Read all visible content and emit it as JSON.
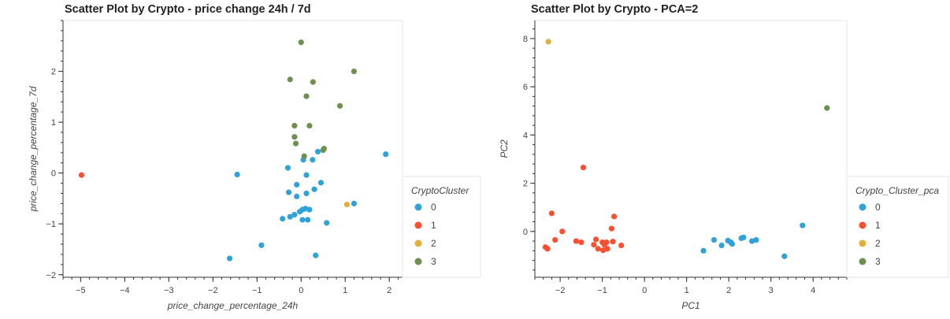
{
  "chart_data": [
    {
      "type": "scatter",
      "title": "Scatter Plot by Crypto - price change 24h / 7d",
      "xlabel": "price_change_percentage_24h",
      "ylabel": "price_change_percentage_7d",
      "xlim": [
        -5.4,
        2.3
      ],
      "ylim": [
        -2.05,
        3.0
      ],
      "xticks": [
        -5,
        -4,
        -3,
        -2,
        -1,
        0,
        1,
        2
      ],
      "yticks": [
        -2,
        -1,
        0,
        1,
        2
      ],
      "grid": false,
      "legend": {
        "title": "CryptoCluster",
        "placement": "right"
      },
      "series": [
        {
          "name": "0",
          "color": "#30a2da",
          "points": [
            [
              1.92,
              0.37
            ],
            [
              0.38,
              0.42
            ],
            [
              0.26,
              0.26
            ],
            [
              0.05,
              0.26
            ],
            [
              -0.3,
              0.1
            ],
            [
              -1.45,
              -0.03
            ],
            [
              0.12,
              -0.04
            ],
            [
              -0.1,
              -0.23
            ],
            [
              0.45,
              -0.19
            ],
            [
              0.3,
              -0.32
            ],
            [
              -0.28,
              -0.38
            ],
            [
              0.12,
              -0.4
            ],
            [
              -0.1,
              -0.46
            ],
            [
              1.2,
              -0.6
            ],
            [
              0.1,
              -0.7
            ],
            [
              0.03,
              -0.72
            ],
            [
              0.19,
              -0.72
            ],
            [
              -0.03,
              -0.76
            ],
            [
              -0.15,
              -0.82
            ],
            [
              -0.25,
              -0.86
            ],
            [
              -0.42,
              -0.9
            ],
            [
              0.03,
              -0.92
            ],
            [
              0.15,
              -0.92
            ],
            [
              0.58,
              -0.98
            ],
            [
              -0.9,
              -1.42
            ],
            [
              0.33,
              -1.62
            ],
            [
              -1.62,
              -1.68
            ]
          ]
        },
        {
          "name": "1",
          "color": "#fc4f30",
          "points": [
            [
              -4.98,
              -0.04
            ]
          ]
        },
        {
          "name": "2",
          "color": "#e5ae38",
          "points": [
            [
              1.04,
              -0.62
            ]
          ]
        },
        {
          "name": "3",
          "color": "#6d904f",
          "points": [
            [
              0.0,
              2.57
            ],
            [
              1.2,
              2.0
            ],
            [
              -0.25,
              1.84
            ],
            [
              0.27,
              1.79
            ],
            [
              0.12,
              1.51
            ],
            [
              0.88,
              1.32
            ],
            [
              -0.15,
              0.93
            ],
            [
              0.19,
              0.93
            ],
            [
              -0.15,
              0.71
            ],
            [
              -0.12,
              0.58
            ],
            [
              0.52,
              0.48
            ],
            [
              0.5,
              0.45
            ],
            [
              0.07,
              0.33
            ]
          ]
        }
      ]
    },
    {
      "type": "scatter",
      "title": "Scatter Plot by Crypto - PCA=2",
      "xlabel": "PC1",
      "ylabel": "PC2",
      "xlim": [
        -2.6,
        4.8
      ],
      "ylim": [
        -1.9,
        8.75
      ],
      "xticks": [
        -2,
        -1,
        0,
        1,
        2,
        3,
        4
      ],
      "yticks": [
        0,
        2,
        4,
        6,
        8
      ],
      "grid": false,
      "legend": {
        "title": "Crypto_Cluster_pca",
        "placement": "right"
      },
      "series": [
        {
          "name": "0",
          "color": "#30a2da",
          "points": [
            [
              3.75,
              0.25
            ],
            [
              2.35,
              -0.25
            ],
            [
              2.3,
              -0.28
            ],
            [
              1.65,
              -0.35
            ],
            [
              2.65,
              -0.35
            ],
            [
              1.98,
              -0.38
            ],
            [
              2.55,
              -0.4
            ],
            [
              2.05,
              -0.45
            ],
            [
              2.08,
              -0.52
            ],
            [
              1.83,
              -0.58
            ],
            [
              1.4,
              -0.8
            ],
            [
              3.32,
              -1.03
            ]
          ]
        },
        {
          "name": "1",
          "color": "#fc4f30",
          "points": [
            [
              -1.45,
              2.65
            ],
            [
              -2.2,
              0.75
            ],
            [
              -0.72,
              0.62
            ],
            [
              -1.95,
              0.0
            ],
            [
              -0.78,
              0.12
            ],
            [
              -2.12,
              -0.35
            ],
            [
              -1.62,
              -0.4
            ],
            [
              -1.5,
              -0.45
            ],
            [
              -1.15,
              -0.33
            ],
            [
              -1.0,
              -0.45
            ],
            [
              -0.9,
              -0.45
            ],
            [
              -0.75,
              -0.42
            ],
            [
              -1.2,
              -0.55
            ],
            [
              -0.95,
              -0.55
            ],
            [
              -0.55,
              -0.58
            ],
            [
              -2.35,
              -0.65
            ],
            [
              -2.3,
              -0.72
            ],
            [
              -1.1,
              -0.72
            ],
            [
              -0.88,
              -0.72
            ],
            [
              -0.98,
              -0.78
            ]
          ]
        },
        {
          "name": "2",
          "color": "#e5ae38",
          "points": [
            [
              -2.28,
              7.87
            ]
          ]
        },
        {
          "name": "3",
          "color": "#6d904f",
          "points": [
            [
              4.33,
              5.12
            ]
          ]
        }
      ]
    }
  ]
}
